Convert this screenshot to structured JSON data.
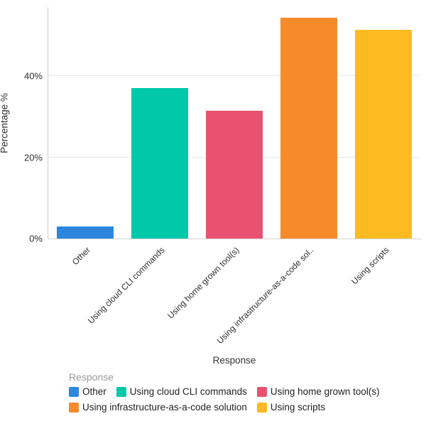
{
  "chart_data": {
    "type": "bar",
    "title": "",
    "xlabel": "Response",
    "ylabel": "Percentage %",
    "categories": [
      "Other",
      "Using cloud CLI commands",
      "Using home grown tool(s)",
      "Using infrastructure-as-a-code solution",
      "Using scripts"
    ],
    "xtick_labels": [
      "Other",
      "Using cloud CLI commands",
      "Using home grown tool(s)",
      "Using infrastructure-as-a-code sol..",
      "Using scripts"
    ],
    "values": [
      2.9,
      37.1,
      31.4,
      54.3,
      51.4
    ],
    "bar_colors": [
      "#2D86DE",
      "#00C9A9",
      "#E8516F",
      "#F68B2C",
      "#FDBA21"
    ],
    "ylim": [
      0,
      57
    ],
    "yticks": [
      0,
      20,
      40
    ],
    "ytick_labels": [
      "0%",
      "20%",
      "40%"
    ],
    "grid": true,
    "legend_position": "bottom-left",
    "legend": {
      "title": "Response",
      "items": [
        {
          "label": "Other",
          "color": "#2D86DE"
        },
        {
          "label": "Using cloud CLI commands",
          "color": "#00C9A9"
        },
        {
          "label": "Using home grown tool(s)",
          "color": "#E8516F"
        },
        {
          "label": "Using infrastructure-as-a-code solution",
          "color": "#F68B2C"
        },
        {
          "label": "Using scripts",
          "color": "#FDBA21"
        }
      ]
    }
  }
}
